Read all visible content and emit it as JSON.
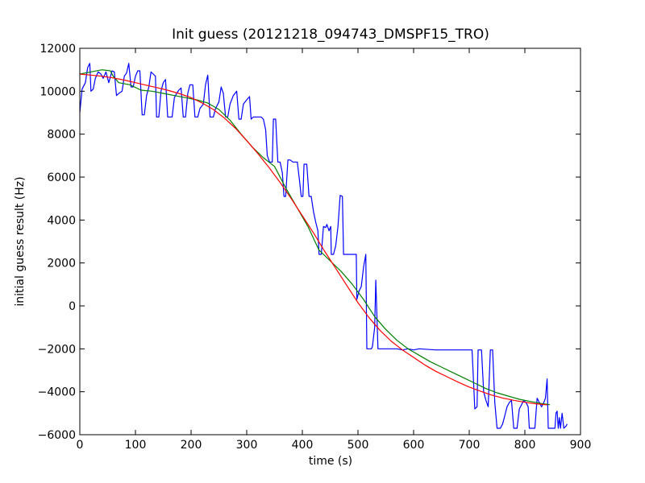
{
  "chart_data": {
    "type": "line",
    "title": "Init guess (20121218_094743_DMSPF15_TRO)",
    "xlabel": "time (s)",
    "ylabel": "initial guess result (Hz)",
    "xlim": [
      0,
      900
    ],
    "ylim": [
      -6000,
      12000
    ],
    "x_ticks": [
      "0",
      "100",
      "200",
      "300",
      "400",
      "500",
      "600",
      "700",
      "800",
      "900"
    ],
    "y_ticks": [
      "12000",
      "10000",
      "8000",
      "6000",
      "4000",
      "2000",
      "0",
      "−2000",
      "−4000",
      "−6000"
    ],
    "grid": false,
    "legend": "none",
    "series": [
      {
        "color": "#0000ff",
        "points": [
          [
            0,
            9000
          ],
          [
            4,
            10100
          ],
          [
            10,
            10400
          ],
          [
            14,
            11100
          ],
          [
            18,
            11300
          ],
          [
            20,
            10000
          ],
          [
            24,
            10100
          ],
          [
            28,
            10600
          ],
          [
            33,
            10900
          ],
          [
            38,
            10800
          ],
          [
            42,
            10600
          ],
          [
            47,
            10900
          ],
          [
            52,
            10400
          ],
          [
            58,
            10950
          ],
          [
            62,
            10900
          ],
          [
            66,
            9800
          ],
          [
            70,
            9900
          ],
          [
            76,
            10000
          ],
          [
            80,
            10700
          ],
          [
            84,
            10850
          ],
          [
            88,
            11300
          ],
          [
            92,
            10200
          ],
          [
            96,
            10200
          ],
          [
            100,
            10700
          ],
          [
            104,
            10950
          ],
          [
            108,
            10950
          ],
          [
            112,
            8900
          ],
          [
            116,
            8900
          ],
          [
            120,
            9800
          ],
          [
            124,
            10200
          ],
          [
            128,
            10900
          ],
          [
            132,
            10800
          ],
          [
            136,
            10700
          ],
          [
            138,
            8800
          ],
          [
            142,
            8800
          ],
          [
            146,
            10000
          ],
          [
            150,
            10400
          ],
          [
            154,
            10550
          ],
          [
            158,
            8800
          ],
          [
            166,
            8800
          ],
          [
            170,
            9700
          ],
          [
            174,
            9900
          ],
          [
            178,
            10050
          ],
          [
            182,
            10150
          ],
          [
            186,
            8800
          ],
          [
            190,
            8800
          ],
          [
            194,
            9900
          ],
          [
            198,
            10300
          ],
          [
            203,
            10300
          ],
          [
            207,
            8800
          ],
          [
            212,
            8800
          ],
          [
            216,
            9200
          ],
          [
            222,
            9400
          ],
          [
            226,
            10300
          ],
          [
            230,
            10750
          ],
          [
            234,
            8800
          ],
          [
            240,
            8800
          ],
          [
            244,
            9200
          ],
          [
            250,
            9500
          ],
          [
            254,
            10200
          ],
          [
            258,
            9900
          ],
          [
            262,
            8800
          ],
          [
            266,
            8800
          ],
          [
            270,
            9400
          ],
          [
            276,
            9800
          ],
          [
            282,
            10000
          ],
          [
            286,
            8700
          ],
          [
            290,
            8700
          ],
          [
            294,
            9400
          ],
          [
            300,
            9600
          ],
          [
            305,
            9750
          ],
          [
            308,
            8700
          ],
          [
            312,
            8800
          ],
          [
            318,
            8800
          ],
          [
            323,
            8800
          ],
          [
            326,
            8800
          ],
          [
            330,
            8700
          ],
          [
            334,
            8200
          ],
          [
            337,
            7000
          ],
          [
            341,
            6700
          ],
          [
            346,
            6700
          ],
          [
            348,
            8700
          ],
          [
            352,
            8700
          ],
          [
            356,
            6700
          ],
          [
            360,
            6700
          ],
          [
            364,
            6200
          ],
          [
            367,
            5100
          ],
          [
            370,
            5100
          ],
          [
            374,
            6800
          ],
          [
            378,
            6800
          ],
          [
            383,
            6700
          ],
          [
            387,
            6700
          ],
          [
            391,
            6700
          ],
          [
            395,
            5800
          ],
          [
            398,
            5100
          ],
          [
            401,
            5100
          ],
          [
            403,
            6600
          ],
          [
            408,
            6600
          ],
          [
            412,
            5100
          ],
          [
            416,
            5100
          ],
          [
            420,
            4400
          ],
          [
            424,
            3900
          ],
          [
            428,
            3500
          ],
          [
            430,
            2400
          ],
          [
            434,
            2400
          ],
          [
            438,
            3700
          ],
          [
            442,
            3650
          ],
          [
            444,
            3800
          ],
          [
            448,
            3500
          ],
          [
            451,
            3700
          ],
          [
            452,
            2400
          ],
          [
            456,
            2400
          ],
          [
            460,
            2800
          ],
          [
            464,
            3700
          ],
          [
            468,
            5150
          ],
          [
            472,
            5100
          ],
          [
            474,
            2400
          ],
          [
            478,
            2400
          ],
          [
            482,
            2400
          ],
          [
            486,
            2400
          ],
          [
            490,
            2400
          ],
          [
            494,
            2400
          ],
          [
            497,
            2400
          ],
          [
            498,
            300
          ],
          [
            502,
            700
          ],
          [
            506,
            900
          ],
          [
            510,
            1800
          ],
          [
            514,
            2400
          ],
          [
            516,
            -2000
          ],
          [
            524,
            -2000
          ],
          [
            526,
            -1900
          ],
          [
            530,
            -1000
          ],
          [
            532,
            1200
          ],
          [
            536,
            -2000
          ],
          [
            570,
            -2000
          ],
          [
            580,
            -2050
          ],
          [
            590,
            -2000
          ],
          [
            600,
            -2050
          ],
          [
            610,
            -2000
          ],
          [
            640,
            -2050
          ],
          [
            700,
            -2050
          ],
          [
            705,
            -2050
          ],
          [
            710,
            -4800
          ],
          [
            714,
            -4700
          ],
          [
            716,
            -2050
          ],
          [
            722,
            -2050
          ],
          [
            726,
            -4000
          ],
          [
            730,
            -4400
          ],
          [
            734,
            -4700
          ],
          [
            738,
            -2050
          ],
          [
            742,
            -2050
          ],
          [
            746,
            -4500
          ],
          [
            750,
            -5700
          ],
          [
            756,
            -5700
          ],
          [
            760,
            -5500
          ],
          [
            764,
            -5100
          ],
          [
            768,
            -4700
          ],
          [
            772,
            -4500
          ],
          [
            776,
            -4400
          ],
          [
            780,
            -5700
          ],
          [
            786,
            -5700
          ],
          [
            790,
            -4800
          ],
          [
            794,
            -4600
          ],
          [
            798,
            -4400
          ],
          [
            802,
            -4500
          ],
          [
            806,
            -4700
          ],
          [
            808,
            -5700
          ],
          [
            814,
            -5700
          ],
          [
            818,
            -5700
          ],
          [
            822,
            -4300
          ],
          [
            826,
            -4500
          ],
          [
            830,
            -4700
          ],
          [
            834,
            -4500
          ],
          [
            837,
            -4300
          ],
          [
            840,
            -3400
          ],
          [
            842,
            -5700
          ],
          [
            854,
            -5700
          ],
          [
            856,
            -5000
          ],
          [
            858,
            -4900
          ],
          [
            860,
            -5700
          ],
          [
            862,
            -5200
          ],
          [
            864,
            -5700
          ],
          [
            867,
            -5000
          ],
          [
            870,
            -5700
          ],
          [
            874,
            -5600
          ],
          [
            876,
            -5500
          ]
        ]
      },
      {
        "color": "#008000",
        "points": [
          [
            0,
            10800
          ],
          [
            20,
            10900
          ],
          [
            40,
            11000
          ],
          [
            55,
            10950
          ],
          [
            60,
            10700
          ],
          [
            70,
            10400
          ],
          [
            90,
            10300
          ],
          [
            110,
            10050
          ],
          [
            130,
            10000
          ],
          [
            150,
            9900
          ],
          [
            170,
            9800
          ],
          [
            190,
            9700
          ],
          [
            210,
            9600
          ],
          [
            230,
            9450
          ],
          [
            250,
            9150
          ],
          [
            270,
            8650
          ],
          [
            290,
            8000
          ],
          [
            310,
            7400
          ],
          [
            330,
            6900
          ],
          [
            350,
            6500
          ],
          [
            370,
            5500
          ],
          [
            390,
            4600
          ],
          [
            410,
            3700
          ],
          [
            430,
            2600
          ],
          [
            450,
            2100
          ],
          [
            470,
            1600
          ],
          [
            490,
            1000
          ],
          [
            510,
            300
          ],
          [
            530,
            -500
          ],
          [
            550,
            -1100
          ],
          [
            570,
            -1600
          ],
          [
            590,
            -2000
          ],
          [
            610,
            -2300
          ],
          [
            630,
            -2600
          ],
          [
            650,
            -2850
          ],
          [
            670,
            -3100
          ],
          [
            690,
            -3350
          ],
          [
            710,
            -3600
          ],
          [
            730,
            -3850
          ],
          [
            750,
            -4050
          ],
          [
            770,
            -4200
          ],
          [
            790,
            -4350
          ],
          [
            810,
            -4450
          ],
          [
            830,
            -4550
          ],
          [
            845,
            -4600
          ]
        ]
      },
      {
        "color": "#ff0000",
        "points": [
          [
            0,
            10800
          ],
          [
            20,
            10750
          ],
          [
            40,
            10700
          ],
          [
            60,
            10620
          ],
          [
            80,
            10520
          ],
          [
            100,
            10400
          ],
          [
            120,
            10280
          ],
          [
            140,
            10160
          ],
          [
            160,
            10030
          ],
          [
            180,
            9880
          ],
          [
            200,
            9700
          ],
          [
            220,
            9450
          ],
          [
            240,
            9150
          ],
          [
            260,
            8750
          ],
          [
            280,
            8270
          ],
          [
            300,
            7700
          ],
          [
            320,
            7100
          ],
          [
            340,
            6450
          ],
          [
            360,
            5750
          ],
          [
            380,
            5000
          ],
          [
            400,
            4200
          ],
          [
            420,
            3400
          ],
          [
            440,
            2550
          ],
          [
            460,
            1750
          ],
          [
            480,
            950
          ],
          [
            500,
            150
          ],
          [
            520,
            -550
          ],
          [
            540,
            -1150
          ],
          [
            560,
            -1650
          ],
          [
            580,
            -2050
          ],
          [
            600,
            -2400
          ],
          [
            620,
            -2750
          ],
          [
            640,
            -3050
          ],
          [
            660,
            -3300
          ],
          [
            680,
            -3550
          ],
          [
            700,
            -3780
          ],
          [
            720,
            -3970
          ],
          [
            740,
            -4150
          ],
          [
            760,
            -4290
          ],
          [
            780,
            -4400
          ],
          [
            800,
            -4490
          ],
          [
            820,
            -4560
          ],
          [
            840,
            -4610
          ]
        ]
      }
    ]
  }
}
